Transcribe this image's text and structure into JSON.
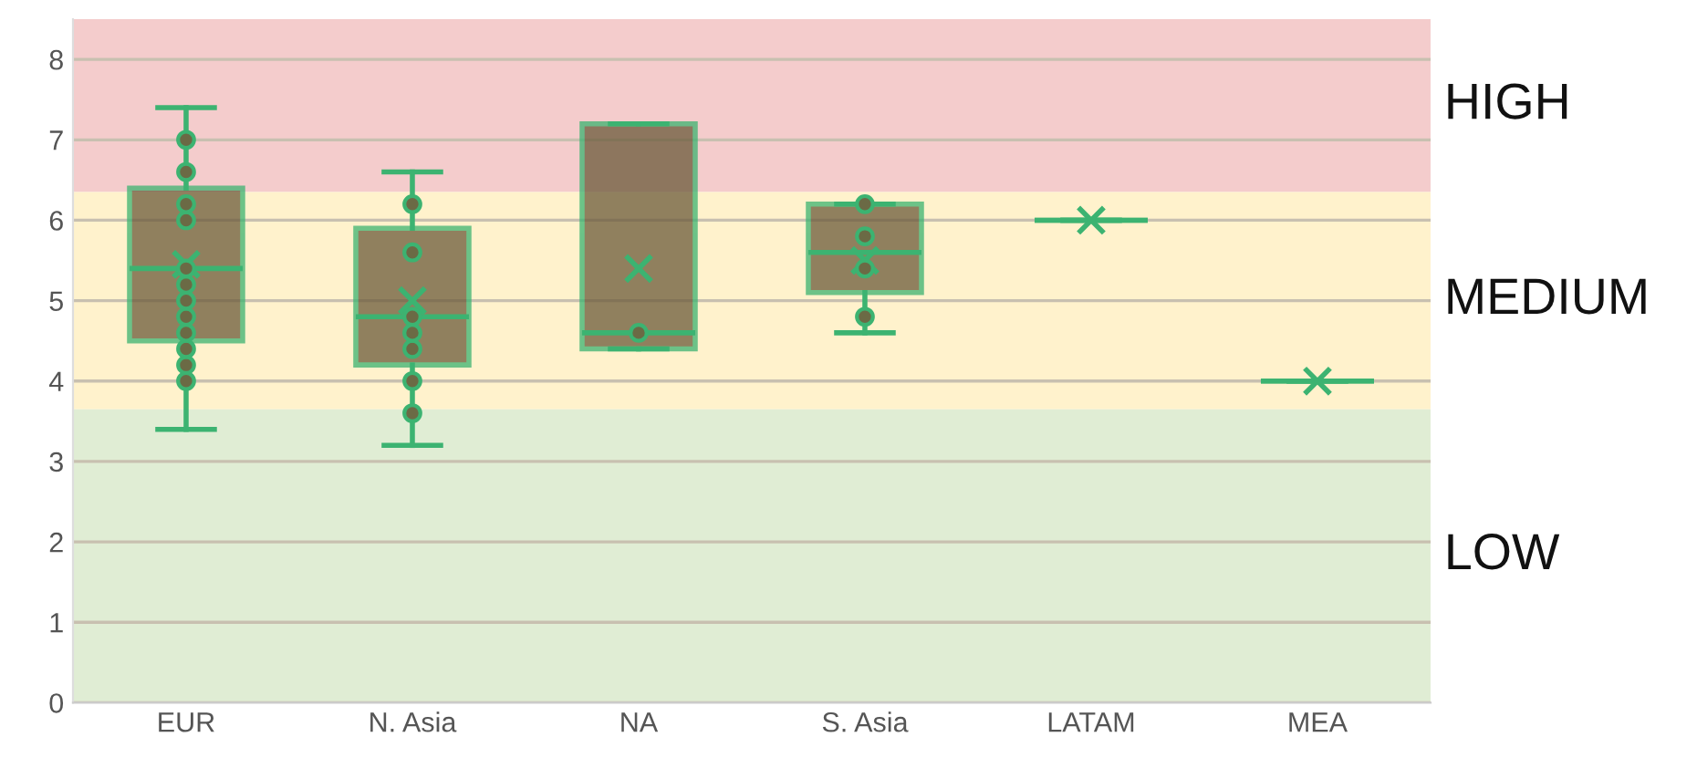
{
  "chart_data": {
    "type": "box",
    "categories": [
      "EUR",
      "N. Asia",
      "NA",
      "S. Asia",
      "LATAM",
      "MEA"
    ],
    "ylim": [
      0,
      8.5
    ],
    "yticks": [
      0,
      1,
      2,
      3,
      4,
      5,
      6,
      7,
      8
    ],
    "grid": "y",
    "series": [
      {
        "color": "#3cb371",
        "boxes": [
          {
            "low": 3.4,
            "q1": 4.5,
            "median": 5.4,
            "q3": 6.4,
            "high": 7.4,
            "mean": 5.45
          },
          {
            "low": 3.2,
            "q1": 4.2,
            "median": 4.8,
            "q3": 5.9,
            "high": 6.6,
            "mean": 5.0
          },
          {
            "low": 4.4,
            "q1": 4.4,
            "median": 4.6,
            "q3": 7.2,
            "high": 7.2,
            "mean": 5.4
          },
          {
            "low": 4.6,
            "q1": 5.1,
            "median": 5.6,
            "q3": 6.2,
            "high": 6.2,
            "mean": 5.5
          },
          {
            "low": 6.0,
            "q1": 6.0,
            "median": 6.0,
            "q3": 6.0,
            "high": 6.0,
            "mean": 6.0
          },
          {
            "low": 4.0,
            "q1": 4.0,
            "median": 4.0,
            "q3": 4.0,
            "high": 4.0,
            "mean": 4.0
          }
        ]
      },
      {
        "type": "scatter",
        "color": "#3cb371",
        "marker": "circle",
        "x": [
          "EUR",
          "EUR",
          "EUR",
          "EUR",
          "EUR",
          "EUR",
          "EUR",
          "EUR",
          "EUR",
          "EUR",
          "EUR",
          "EUR",
          "N. Asia",
          "N. Asia",
          "N. Asia",
          "N. Asia",
          "N. Asia",
          "N. Asia",
          "N. Asia",
          "NA",
          "S. Asia",
          "S. Asia",
          "S. Asia",
          "S. Asia"
        ],
        "values": [
          4.0,
          4.2,
          4.4,
          4.6,
          4.8,
          5.0,
          5.2,
          5.4,
          6.0,
          6.2,
          6.6,
          7.0,
          3.6,
          4.0,
          4.4,
          4.6,
          4.8,
          5.6,
          6.2,
          4.6,
          4.8,
          5.4,
          5.8,
          6.2
        ]
      }
    ],
    "bands": [
      {
        "axis": "y",
        "from": 6.35,
        "to": 8.5,
        "label": "HIGH",
        "color": "#f4cccc"
      },
      {
        "axis": "y",
        "from": 3.65,
        "to": 6.35,
        "label": "MEDIUM",
        "color": "#fff2cc"
      },
      {
        "axis": "y",
        "from": 0,
        "to": 3.65,
        "label": "LOW",
        "color": "#e0edd4"
      }
    ]
  }
}
